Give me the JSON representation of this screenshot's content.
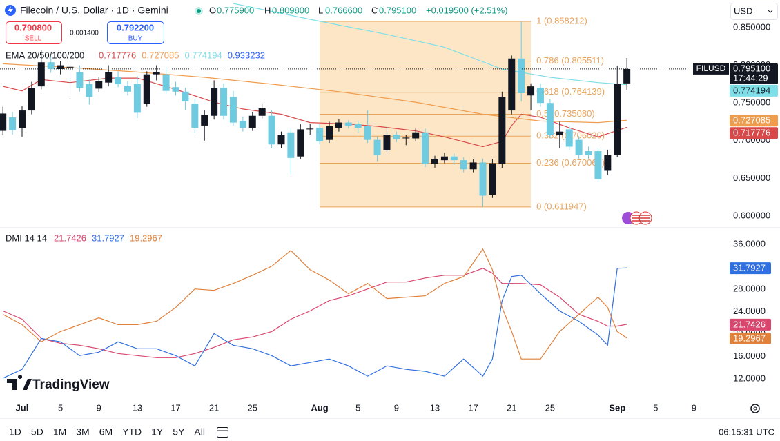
{
  "header": {
    "title": "Filecoin / U.S. Dollar · 1D · Gemini",
    "o_label": "O",
    "o": "0.775900",
    "h_label": "H",
    "h": "0.809800",
    "l_label": "L",
    "l": "0.766600",
    "c_label": "C",
    "change": "+0.019500 (+2.51%)",
    "currency": "USD"
  },
  "trade": {
    "sell_price": "0.790800",
    "sell": "SELL",
    "spread": "0.001400",
    "buy_price": "0.792200",
    "buy": "BUY"
  },
  "logo": "TradingView",
  "chart_data": [
    {
      "type": "candlestick",
      "legend_title": "EMA 20/50/100/200",
      "symbol_tag": "FILUSD",
      "last_price_label": "0.795100",
      "countdown": "17:44:29",
      "up_color": "#131722",
      "down_color": "#6fcbe0",
      "xlim": [
        -2.3,
        73.2
      ],
      "ylim": [
        0.5844,
        0.8866
      ],
      "xticks": [
        {
          "value": 0,
          "label": "Jul"
        },
        {
          "value": 4,
          "label": "5"
        },
        {
          "value": 8,
          "label": "9"
        },
        {
          "value": 12,
          "label": "13"
        },
        {
          "value": 16,
          "label": "17"
        },
        {
          "value": 20,
          "label": "21"
        },
        {
          "value": 24,
          "label": "25"
        },
        {
          "value": 31,
          "label": "Aug"
        },
        {
          "value": 35,
          "label": "5"
        },
        {
          "value": 39,
          "label": "9"
        },
        {
          "value": 43,
          "label": "13"
        },
        {
          "value": 47,
          "label": "17"
        },
        {
          "value": 51,
          "label": "21"
        },
        {
          "value": 55,
          "label": "25"
        },
        {
          "value": 62,
          "label": "Sep"
        },
        {
          "value": 66,
          "label": "5"
        },
        {
          "value": 70,
          "label": "9"
        }
      ],
      "yticks": [
        {
          "value": 0.85,
          "label": "0.850000"
        },
        {
          "value": 0.8,
          "label": "0.800000"
        },
        {
          "value": 0.75,
          "label": "0.750000"
        },
        {
          "value": 0.7,
          "label": "0.700000"
        },
        {
          "value": 0.65,
          "label": "0.650000"
        },
        {
          "value": 0.6,
          "label": "0.600000"
        }
      ],
      "x": [
        -2,
        -1,
        0,
        1,
        2,
        3,
        4,
        5,
        6,
        7,
        8,
        9,
        10,
        11,
        12,
        13,
        14,
        15,
        16,
        17,
        18,
        19,
        20,
        21,
        22,
        23,
        24,
        25,
        26,
        27,
        28,
        29,
        30,
        31,
        32,
        33,
        34,
        35,
        36,
        37,
        38,
        39,
        40,
        41,
        42,
        43,
        44,
        45,
        46,
        47,
        48,
        49,
        50,
        51,
        52,
        53,
        54,
        55,
        56,
        57,
        58,
        59,
        60,
        61,
        62,
        63
      ],
      "open": [
        0.713,
        0.731,
        0.717,
        0.74,
        0.772,
        0.804,
        0.795,
        0.797,
        0.791,
        0.775,
        0.769,
        0.777,
        0.784,
        0.773,
        0.775,
        0.749,
        0.788,
        0.788,
        0.771,
        0.765,
        0.749,
        0.72,
        0.733,
        0.77,
        0.758,
        0.726,
        0.717,
        0.733,
        0.733,
        0.695,
        0.711,
        0.679,
        0.715,
        0.717,
        0.701,
        0.717,
        0.724,
        0.722,
        0.719,
        0.701,
        0.687,
        0.708,
        0.703,
        0.703,
        0.711,
        0.669,
        0.674,
        0.679,
        0.674,
        0.662,
        0.671,
        0.628,
        0.669,
        0.74,
        0.809,
        0.76,
        0.77,
        0.75,
        0.708,
        0.715,
        0.701,
        0.686,
        0.686,
        0.66,
        0.681,
        0.7759
      ],
      "high": [
        0.745,
        0.738,
        0.746,
        0.778,
        0.82,
        0.812,
        0.806,
        0.803,
        0.8,
        0.781,
        0.785,
        0.8,
        0.792,
        0.779,
        0.786,
        0.792,
        0.8,
        0.797,
        0.778,
        0.77,
        0.756,
        0.74,
        0.78,
        0.776,
        0.766,
        0.732,
        0.738,
        0.748,
        0.74,
        0.712,
        0.716,
        0.722,
        0.722,
        0.722,
        0.725,
        0.729,
        0.727,
        0.726,
        0.74,
        0.706,
        0.718,
        0.712,
        0.708,
        0.716,
        0.716,
        0.68,
        0.684,
        0.683,
        0.678,
        0.675,
        0.676,
        0.676,
        0.765,
        0.813,
        0.8582,
        0.776,
        0.776,
        0.755,
        0.725,
        0.72,
        0.706,
        0.692,
        0.69,
        0.688,
        0.799,
        0.8098
      ],
      "low": [
        0.708,
        0.708,
        0.705,
        0.735,
        0.768,
        0.79,
        0.788,
        0.76,
        0.765,
        0.748,
        0.764,
        0.772,
        0.771,
        0.76,
        0.73,
        0.745,
        0.78,
        0.762,
        0.76,
        0.74,
        0.71,
        0.7,
        0.728,
        0.728,
        0.72,
        0.712,
        0.713,
        0.728,
        0.69,
        0.69,
        0.655,
        0.675,
        0.708,
        0.695,
        0.697,
        0.712,
        0.716,
        0.71,
        0.697,
        0.672,
        0.683,
        0.698,
        0.694,
        0.699,
        0.665,
        0.664,
        0.67,
        0.668,
        0.658,
        0.658,
        0.6119,
        0.624,
        0.664,
        0.735,
        0.752,
        0.74,
        0.745,
        0.703,
        0.69,
        0.688,
        0.676,
        0.676,
        0.645,
        0.655,
        0.678,
        0.7666
      ],
      "close": [
        0.736,
        0.714,
        0.74,
        0.77,
        0.804,
        0.795,
        0.8,
        0.798,
        0.77,
        0.758,
        0.779,
        0.791,
        0.775,
        0.765,
        0.737,
        0.788,
        0.791,
        0.766,
        0.765,
        0.752,
        0.717,
        0.734,
        0.77,
        0.733,
        0.724,
        0.717,
        0.733,
        0.743,
        0.695,
        0.708,
        0.677,
        0.715,
        0.716,
        0.699,
        0.719,
        0.724,
        0.72,
        0.717,
        0.701,
        0.681,
        0.708,
        0.702,
        0.704,
        0.711,
        0.669,
        0.676,
        0.679,
        0.674,
        0.662,
        0.671,
        0.627,
        0.67,
        0.758,
        0.809,
        0.763,
        0.772,
        0.75,
        0.708,
        0.712,
        0.692,
        0.681,
        0.681,
        0.649,
        0.681,
        0.7756,
        0.7951
      ],
      "ema": [
        {
          "color": "#d84a4a",
          "last_label": "0.717776",
          "x": [
            -2,
            0,
            2,
            5,
            9,
            12,
            16,
            20,
            23,
            27,
            30,
            34,
            37,
            41,
            44,
            48,
            50,
            51,
            52,
            54,
            57,
            60,
            63
          ],
          "values": [
            0.772,
            0.766,
            0.781,
            0.777,
            0.783,
            0.783,
            0.768,
            0.751,
            0.742,
            0.735,
            0.724,
            0.722,
            0.719,
            0.713,
            0.705,
            0.692,
            0.699,
            0.72,
            0.735,
            0.731,
            0.717,
            0.705,
            0.717776
          ]
        },
        {
          "color": "#ee9d4f",
          "last_label": "0.727085",
          "x": [
            -2,
            5,
            12,
            19,
            26,
            33,
            41,
            48,
            54,
            60,
            63
          ],
          "values": [
            0.802,
            0.797,
            0.791,
            0.784,
            0.775,
            0.765,
            0.751,
            0.735,
            0.726,
            0.724,
            0.727085
          ]
        },
        {
          "color": "#7fdfe9",
          "last_label": "0.774194",
          "x": [
            22,
            30,
            38,
            44,
            50,
            55,
            60,
            63
          ],
          "values": [
            0.882,
            0.861,
            0.841,
            0.824,
            0.795,
            0.784,
            0.777,
            0.774194
          ]
        },
        {
          "color": "#2962ff",
          "last_label": "0.933232",
          "x": [],
          "values": []
        }
      ],
      "fib": {
        "x": [
          31,
          53
        ],
        "fill": "#fde6c6",
        "color": "#e9a45c",
        "levels": [
          {
            "value": 0.858212,
            "label": "1 (0.858212)"
          },
          {
            "value": 0.805511,
            "label": "0.786 (0.805511)"
          },
          {
            "value": 0.764139,
            "label": "0.618 (0.764139)"
          },
          {
            "value": 0.73508,
            "label": "0.5 (0.735080)"
          },
          {
            "value": 0.70602,
            "label": "0.382 (0.706020)"
          },
          {
            "value": 0.670066,
            "label": "0.236 (0.670066)"
          },
          {
            "value": 0.611947,
            "label": "0 (0.611947)"
          }
        ]
      }
    },
    {
      "type": "line",
      "legend_title": "DMI 14 14",
      "xlim": [
        -2.3,
        73.2
      ],
      "ylim": [
        8.46,
        38.82
      ],
      "yticks": [
        {
          "value": 36,
          "label": "36.0000"
        },
        {
          "value": 32,
          "label": "32.0000"
        },
        {
          "value": 28,
          "label": "28.0000"
        },
        {
          "value": 24,
          "label": "24.0000"
        },
        {
          "value": 20,
          "label": "20.0000"
        },
        {
          "value": 16,
          "label": "16.0000"
        },
        {
          "value": 12,
          "label": "12.0000"
        }
      ],
      "x": [
        -2,
        0,
        2,
        4,
        6,
        8,
        10,
        12,
        14,
        16,
        18,
        20,
        22,
        24,
        26,
        28,
        30,
        32,
        34,
        36,
        38,
        40,
        42,
        44,
        46,
        48,
        49,
        50,
        51,
        52,
        54,
        56,
        58,
        60,
        61,
        62,
        63
      ],
      "series": [
        {
          "color": "#d9466e",
          "last_label": "21.7426",
          "values": [
            24.13,
            22.66,
            19.23,
            18.37,
            18.01,
            17.4,
            16.54,
            16.17,
            15.8,
            15.8,
            16.54,
            17.64,
            18.99,
            19.48,
            20.46,
            22.66,
            24.13,
            25.96,
            26.82,
            28.04,
            29.27,
            29.27,
            30.0,
            30.49,
            30.49,
            31.72,
            30.86,
            29.02,
            29.02,
            29.02,
            28.78,
            26.58,
            23.52,
            22.29,
            21.43,
            21.43,
            21.7426
          ]
        },
        {
          "color": "#2f6fe0",
          "last_label": "31.7927",
          "values": [
            12.13,
            13.72,
            19.23,
            18.62,
            16.17,
            16.78,
            18.62,
            17.4,
            17.4,
            16.17,
            14.34,
            20.09,
            18.01,
            17.4,
            16.17,
            14.34,
            14.95,
            15.56,
            14.34,
            12.5,
            14.34,
            13.72,
            13.36,
            12.5,
            15.56,
            12.5,
            15.56,
            25.96,
            30.25,
            30.49,
            27.19,
            24.13,
            22.29,
            19.84,
            18.01,
            31.72,
            31.7927
          ]
        },
        {
          "color": "#e0803a",
          "last_label": "19.2967",
          "values": [
            23.52,
            21.68,
            18.62,
            20.46,
            21.68,
            22.9,
            21.68,
            21.68,
            22.29,
            24.74,
            28.04,
            27.8,
            29.02,
            30.49,
            32.08,
            34.9,
            31.47,
            29.64,
            27.19,
            29.02,
            26.33,
            26.58,
            26.82,
            29.02,
            30.25,
            35.14,
            31.47,
            24.74,
            20.46,
            15.56,
            15.56,
            20.46,
            23.52,
            26.58,
            24.74,
            20.46,
            19.2967
          ]
        }
      ]
    }
  ],
  "toolbar": {
    "ranges": [
      "1D",
      "5D",
      "1M",
      "3M",
      "6M",
      "YTD",
      "1Y",
      "5Y",
      "All"
    ],
    "clock": "06:15:31 UTC"
  }
}
